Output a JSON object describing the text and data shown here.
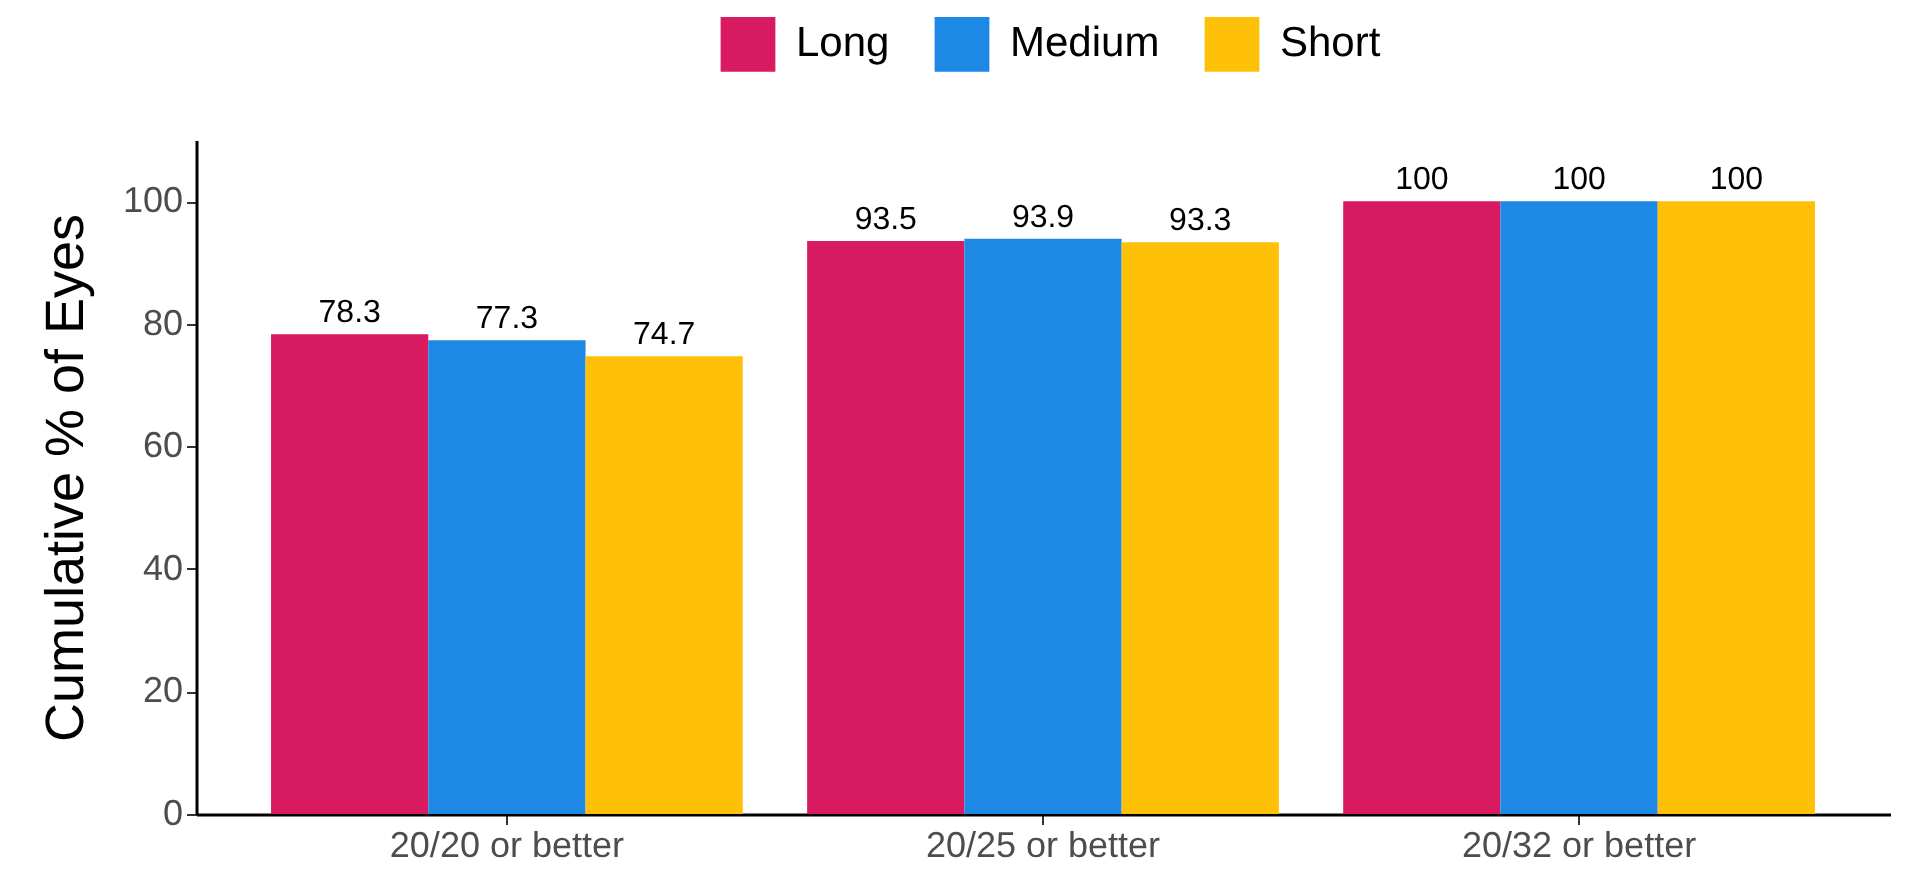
{
  "chart_data": {
    "type": "bar",
    "ylabel": "Cumulative % of Eyes",
    "categories": [
      "20/20 or better",
      "20/25 or better",
      "20/32 or better"
    ],
    "series": [
      {
        "name": "Long",
        "color": "#d81b60",
        "values": [
          78.3,
          93.5,
          100
        ]
      },
      {
        "name": "Medium",
        "color": "#1e88e5",
        "values": [
          77.3,
          93.9,
          100
        ]
      },
      {
        "name": "Short",
        "color": "#ffc107",
        "values": [
          74.7,
          93.3,
          100
        ]
      }
    ],
    "ylim": [
      0,
      110
    ],
    "yticks": [
      0,
      20,
      40,
      60,
      80,
      100
    ],
    "grid": false,
    "legend": "top",
    "data_labels": true
  }
}
